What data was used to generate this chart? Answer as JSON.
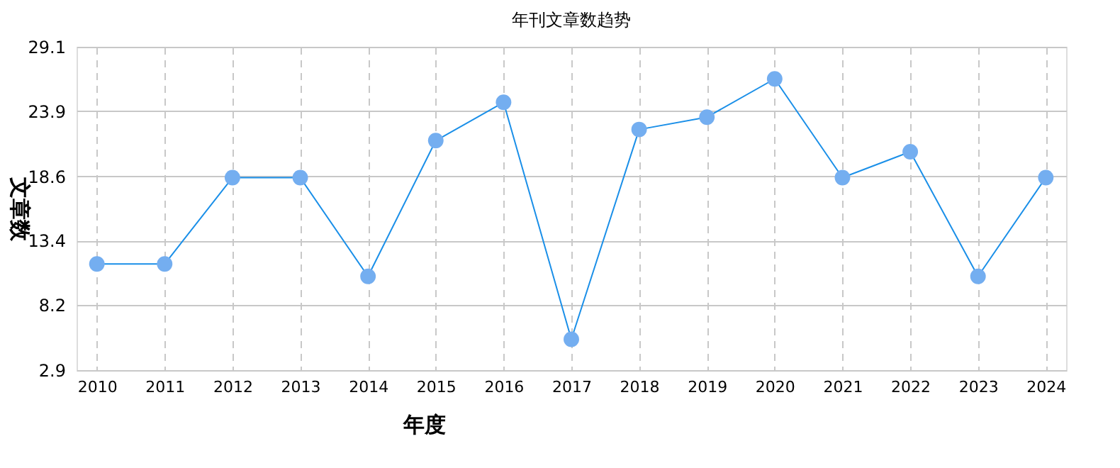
{
  "chart_data": {
    "type": "line",
    "title": "年刊文章数趋势",
    "xlabel": "年度",
    "ylabel": "文章数",
    "categories": [
      "2010",
      "2011",
      "2012",
      "2013",
      "2014",
      "2015",
      "2016",
      "2017",
      "2018",
      "2019",
      "2020",
      "2021",
      "2022",
      "2023",
      "2024"
    ],
    "series": [
      {
        "color": "#1a8fe8",
        "values": [
          11.5,
          11.5,
          18.5,
          18.5,
          10.5,
          21.5,
          24.6,
          5.4,
          22.4,
          23.4,
          26.5,
          18.5,
          20.6,
          10.5,
          18.5
        ]
      }
    ],
    "ylim": [
      2.9,
      29.1
    ],
    "yticks": [
      2.9,
      8.2,
      13.4,
      18.6,
      23.9,
      29.1
    ],
    "grid": true,
    "marker": "circle",
    "line_style": "solid"
  }
}
